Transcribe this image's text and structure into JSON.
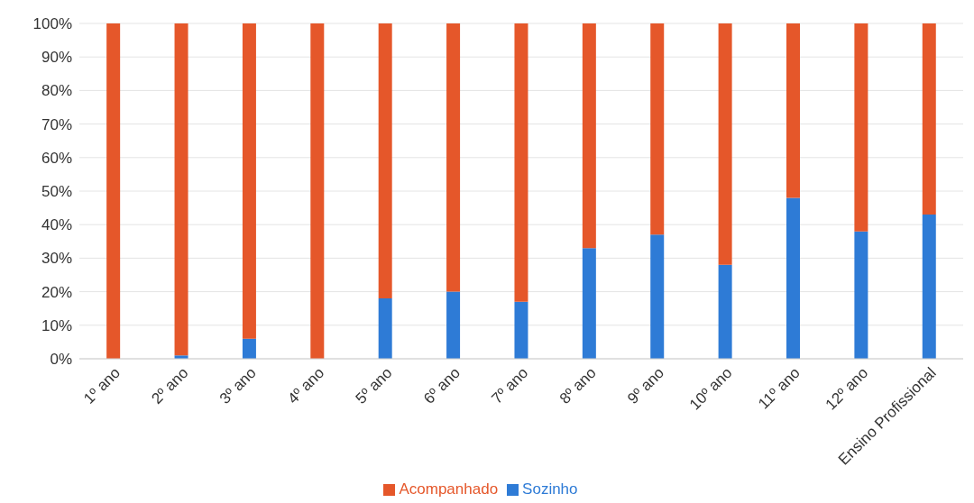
{
  "chart_data": {
    "type": "bar",
    "stacked": true,
    "categories": [
      "1º ano",
      "2º ano",
      "3º ano",
      "4º ano",
      "5º ano",
      "6º ano",
      "7º ano",
      "8º ano",
      "9º ano",
      "10º ano",
      "11º ano",
      "12º ano",
      "Ensino Profissional"
    ],
    "series": [
      {
        "name": "Sozinho",
        "color": "#2e7bd6",
        "values": [
          0,
          1,
          6,
          0,
          18,
          20,
          17,
          33,
          37,
          28,
          48,
          38,
          43
        ]
      },
      {
        "name": "Acompanhado",
        "color": "#e5572a",
        "values": [
          100,
          99,
          94,
          100,
          82,
          80,
          83,
          67,
          63,
          72,
          52,
          62,
          57
        ]
      }
    ],
    "ylim": [
      0,
      100
    ],
    "yticks": [
      {
        "value": 0,
        "label": "0%"
      },
      {
        "value": 10,
        "label": "10%"
      },
      {
        "value": 20,
        "label": "20%"
      },
      {
        "value": 30,
        "label": "30%"
      },
      {
        "value": 40,
        "label": "40%"
      },
      {
        "value": 50,
        "label": "50%"
      },
      {
        "value": 60,
        "label": "60%"
      },
      {
        "value": 70,
        "label": "70%"
      },
      {
        "value": 80,
        "label": "80%"
      },
      {
        "value": 90,
        "label": "90%"
      },
      {
        "value": 100,
        "label": "100%"
      }
    ],
    "grid": "y",
    "legend": "bottom"
  }
}
